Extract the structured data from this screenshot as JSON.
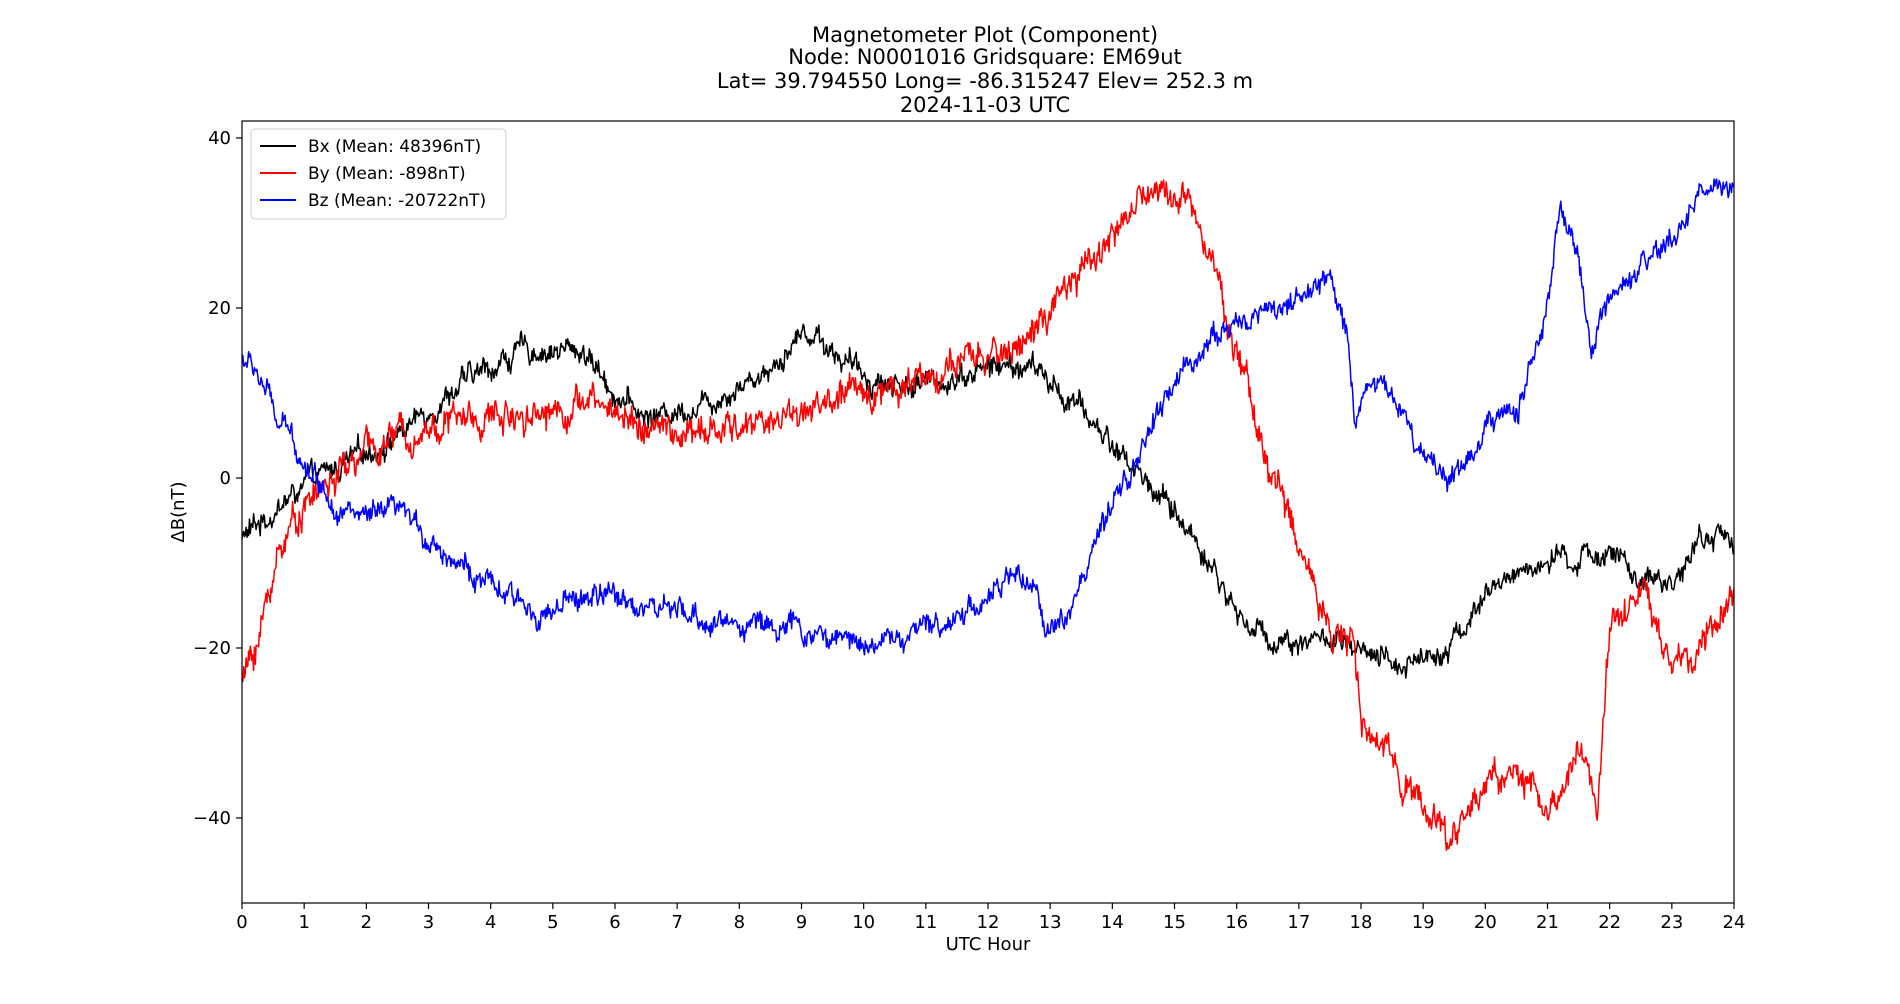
{
  "chart_data": {
    "type": "line",
    "title_lines": [
      "Magnetometer Plot (Component)",
      "Node:  N0001016     Gridsquare:  EM69ut",
      "Lat= 39.794550    Long= -86.315247    Elev= 252.3 m",
      "2024-11-03  UTC"
    ],
    "xlabel": "UTC Hour",
    "ylabel": "ΔB(nT)",
    "xlim": [
      0,
      24
    ],
    "ylim": [
      -50,
      42
    ],
    "x_ticks": [
      0,
      1,
      2,
      3,
      4,
      5,
      6,
      7,
      8,
      9,
      10,
      11,
      12,
      13,
      14,
      15,
      16,
      17,
      18,
      19,
      20,
      21,
      22,
      23,
      24
    ],
    "x_tick_labels": [
      "0",
      "1",
      "2",
      "3",
      "4",
      "5",
      "6",
      "7",
      "8",
      "9",
      "10",
      "11",
      "12",
      "13",
      "14",
      "15",
      "16",
      "17",
      "18",
      "19",
      "20",
      "21",
      "22",
      "23",
      "24"
    ],
    "y_ticks": [
      40,
      20,
      0,
      -20,
      -40
    ],
    "y_tick_labels": [
      "40",
      "20",
      "0",
      "−20",
      "−40"
    ],
    "grid": false,
    "legend_position": "top-left",
    "series": [
      {
        "name": "Bx (Mean: 48396nT)",
        "color": "#000000",
        "noise": 1.2,
        "x": [
          0,
          0.5,
          1,
          1.5,
          2,
          2.5,
          3,
          3.5,
          4,
          4.5,
          5,
          5.5,
          6,
          6.5,
          7,
          7.5,
          8,
          8.5,
          9,
          9.25,
          9.5,
          10,
          10.5,
          11,
          11.5,
          12,
          12.5,
          12.75,
          13,
          13.5,
          14,
          14.5,
          15,
          15.5,
          16,
          16.5,
          17,
          17.5,
          18,
          18.5,
          19,
          19.5,
          20,
          20.5,
          21,
          21.5,
          22,
          22.5,
          23,
          23.5,
          24
        ],
        "y": [
          -7,
          -4,
          -1,
          1,
          3,
          5,
          8,
          11,
          13,
          15,
          15,
          15,
          10,
          7,
          8,
          9,
          11,
          13,
          17,
          17,
          15,
          12,
          11,
          11,
          12,
          13,
          13,
          13,
          11,
          8,
          4,
          0,
          -4,
          -9,
          -16,
          -19,
          -19,
          -19,
          -21,
          -22,
          -21,
          -19,
          -14,
          -11,
          -10,
          -10,
          -8,
          -13,
          -12,
          -7,
          -7
        ]
      },
      {
        "name": "By (Mean: -898nT)",
        "color": "#ff0000",
        "noise": 1.6,
        "x": [
          0,
          0.3,
          0.6,
          1,
          1.5,
          2,
          2.5,
          3,
          3.5,
          4,
          4.5,
          5,
          5.5,
          6,
          6.5,
          7,
          7.5,
          8,
          8.5,
          9,
          9.5,
          10,
          10.5,
          11,
          11.5,
          12,
          12.5,
          13,
          13.5,
          14,
          14.5,
          15,
          15.5,
          15.8,
          16,
          16.5,
          17,
          17.5,
          17.9,
          18,
          18.5,
          19,
          19.4,
          19.7,
          20,
          20.5,
          21,
          21.3,
          21.5,
          21.8,
          22,
          22.2,
          22.5,
          23,
          23.5,
          24
        ],
        "y": [
          -24,
          -18,
          -8,
          -3,
          0,
          3,
          5,
          6,
          7,
          7,
          8,
          8,
          9,
          8,
          6,
          5,
          5,
          6,
          7,
          8,
          9,
          10,
          11,
          12,
          13,
          14,
          16,
          19,
          24,
          29,
          33,
          34,
          30,
          20,
          15,
          2,
          -8,
          -17,
          -20,
          -30,
          -33,
          -38,
          -43,
          -39,
          -36,
          -34,
          -40,
          -36,
          -31,
          -38,
          -17,
          -15,
          -13,
          -22,
          -21,
          -13
        ]
      },
      {
        "name": "Bz (Mean: -20722nT)",
        "color": "#0000ff",
        "noise": 1.2,
        "x": [
          0,
          0.2,
          0.4,
          0.6,
          0.8,
          1,
          1.5,
          2,
          2.5,
          3,
          3.5,
          4,
          4.5,
          5,
          5.5,
          6,
          6.5,
          7,
          7.5,
          8,
          8.5,
          9,
          9.5,
          10,
          10.5,
          11,
          11.5,
          12,
          12.5,
          12.6,
          12.7,
          12.9,
          13.2,
          13.6,
          14,
          14.5,
          15,
          15.5,
          16,
          16.5,
          17,
          17.5,
          17.8,
          17.9,
          18.1,
          18.5,
          19,
          19.3,
          19.5,
          20,
          20.5,
          21,
          21.2,
          21.5,
          21.7,
          22,
          22.5,
          23,
          23.5,
          24
        ],
        "y": [
          14,
          13,
          10,
          6,
          5,
          2,
          -3,
          -5,
          -4,
          -7,
          -10,
          -13,
          -15,
          -16,
          -14,
          -14,
          -15,
          -16,
          -17,
          -17,
          -17,
          -18,
          -19,
          -19,
          -19,
          -18,
          -16,
          -14,
          -11,
          -14,
          -12,
          -17,
          -17,
          -10,
          -4,
          4,
          11,
          16,
          18,
          20,
          21,
          23,
          17,
          6,
          12,
          10,
          3,
          1,
          0,
          6,
          8,
          20,
          31,
          26,
          15,
          20,
          24,
          28,
          34,
          34
        ]
      }
    ]
  }
}
